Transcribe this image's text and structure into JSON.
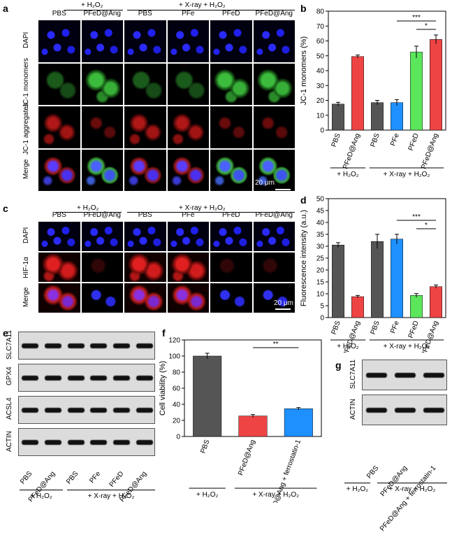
{
  "panels": {
    "a": "a",
    "b": "b",
    "c": "c",
    "d": "d",
    "e": "e",
    "f": "f",
    "g": "g"
  },
  "group_h2o2": "+ H₂O₂",
  "group_xray_h2o2": "+ X-ray + H₂O₂",
  "a": {
    "columns": [
      "PBS",
      "PFeD@Ang",
      "PBS",
      "PFe",
      "PFeD",
      "PFeD@Ang"
    ],
    "rows": [
      "DAPI",
      "JC-1 monomers",
      "JC-1 aggregates",
      "Merge"
    ],
    "scale_bar": "20 μm"
  },
  "c": {
    "columns": [
      "PBS",
      "PFeD@Ang",
      "PBS",
      "PFe",
      "PFeD",
      "PFeD@Ang"
    ],
    "rows": [
      "DAPI",
      "HIF-1α",
      "Merge"
    ],
    "scale_bar": "20 μm"
  },
  "e": {
    "rows": [
      "SLC7A11",
      "GPX4",
      "ACSL4",
      "ACTIN"
    ],
    "columns": [
      "PBS",
      "PFeD@Ang",
      "PBS",
      "PFe",
      "PFeD",
      "PFeD@Ang"
    ]
  },
  "g": {
    "rows": [
      "SLC7A11",
      "ACTIN"
    ],
    "columns": [
      "PBS",
      "PFeD@Ang",
      "PFeD@Ang + ferrostatin-1"
    ]
  },
  "colors": {
    "PBS": "#555555",
    "PFeD@Ang": "#ef4444",
    "PFe": "#1e90ff",
    "PFeD": "#5ce65c"
  },
  "chart_data": [
    {
      "id": "b",
      "type": "bar",
      "ylabel": "JC-1 monomers (%)",
      "ylim": [
        0,
        80
      ],
      "yticks": [
        0,
        10,
        20,
        30,
        40,
        50,
        60,
        70,
        80
      ],
      "categories": [
        "PBS",
        "PFeD@Ang",
        "PBS",
        "PFe",
        "PFeD",
        "PFeD@Ang"
      ],
      "values": [
        17.5,
        49.5,
        18.5,
        18.5,
        52.5,
        61
      ],
      "errors": [
        1.2,
        1.0,
        1.5,
        2.0,
        4.0,
        3.0
      ],
      "colors": [
        "#555555",
        "#ef4444",
        "#555555",
        "#1e90ff",
        "#5ce65c",
        "#ef4444"
      ],
      "groups": [
        {
          "label": "+ H₂O₂",
          "from": 0,
          "to": 1
        },
        {
          "label": "+ X-ray + H₂O₂",
          "from": 2,
          "to": 5
        }
      ],
      "significance": [
        {
          "from": 3,
          "to": 5,
          "label": "***"
        },
        {
          "from": 4,
          "to": 5,
          "label": "*"
        }
      ]
    },
    {
      "id": "d",
      "type": "bar",
      "ylabel": "Fluorescence intensity (a.u.)",
      "ylim": [
        0,
        50
      ],
      "yticks": [
        0,
        5,
        10,
        15,
        20,
        25,
        30,
        35,
        40,
        45,
        50
      ],
      "categories": [
        "PBS",
        "PFeD@Ang",
        "PBS",
        "PFe",
        "PFeD",
        "PFeD@Ang"
      ],
      "values": [
        30.5,
        8.8,
        32,
        33,
        9.3,
        13
      ],
      "errors": [
        1.0,
        0.5,
        3.0,
        2.0,
        0.8,
        0.7
      ],
      "colors": [
        "#555555",
        "#ef4444",
        "#555555",
        "#1e90ff",
        "#5ce65c",
        "#ef4444"
      ],
      "groups": [
        {
          "label": "+ H₂O₂",
          "from": 0,
          "to": 1
        },
        {
          "label": "+ X-ray + H₂O₂",
          "from": 2,
          "to": 5
        }
      ],
      "significance": [
        {
          "from": 3,
          "to": 5,
          "label": "***"
        },
        {
          "from": 4,
          "to": 5,
          "label": "*"
        }
      ]
    },
    {
      "id": "f",
      "type": "bar",
      "ylabel": "Cell viability (%)",
      "ylim": [
        0,
        120
      ],
      "yticks": [
        0,
        20,
        40,
        60,
        80,
        100,
        120
      ],
      "categories": [
        "PBS",
        "PFeD@Ang",
        "PFeD@Ang + ferrostatin-1"
      ],
      "values": [
        100,
        25.5,
        34.5
      ],
      "errors": [
        3.5,
        1.8,
        1.5
      ],
      "colors": [
        "#555555",
        "#ef4444",
        "#1e90ff"
      ],
      "groups": [
        {
          "label": "+ H₂O₂",
          "from": 0,
          "to": 0
        },
        {
          "label": "+ X-ray + H₂O₂",
          "from": 1,
          "to": 2
        }
      ],
      "significance": [
        {
          "from": 1,
          "to": 2,
          "label": "**"
        }
      ]
    }
  ]
}
